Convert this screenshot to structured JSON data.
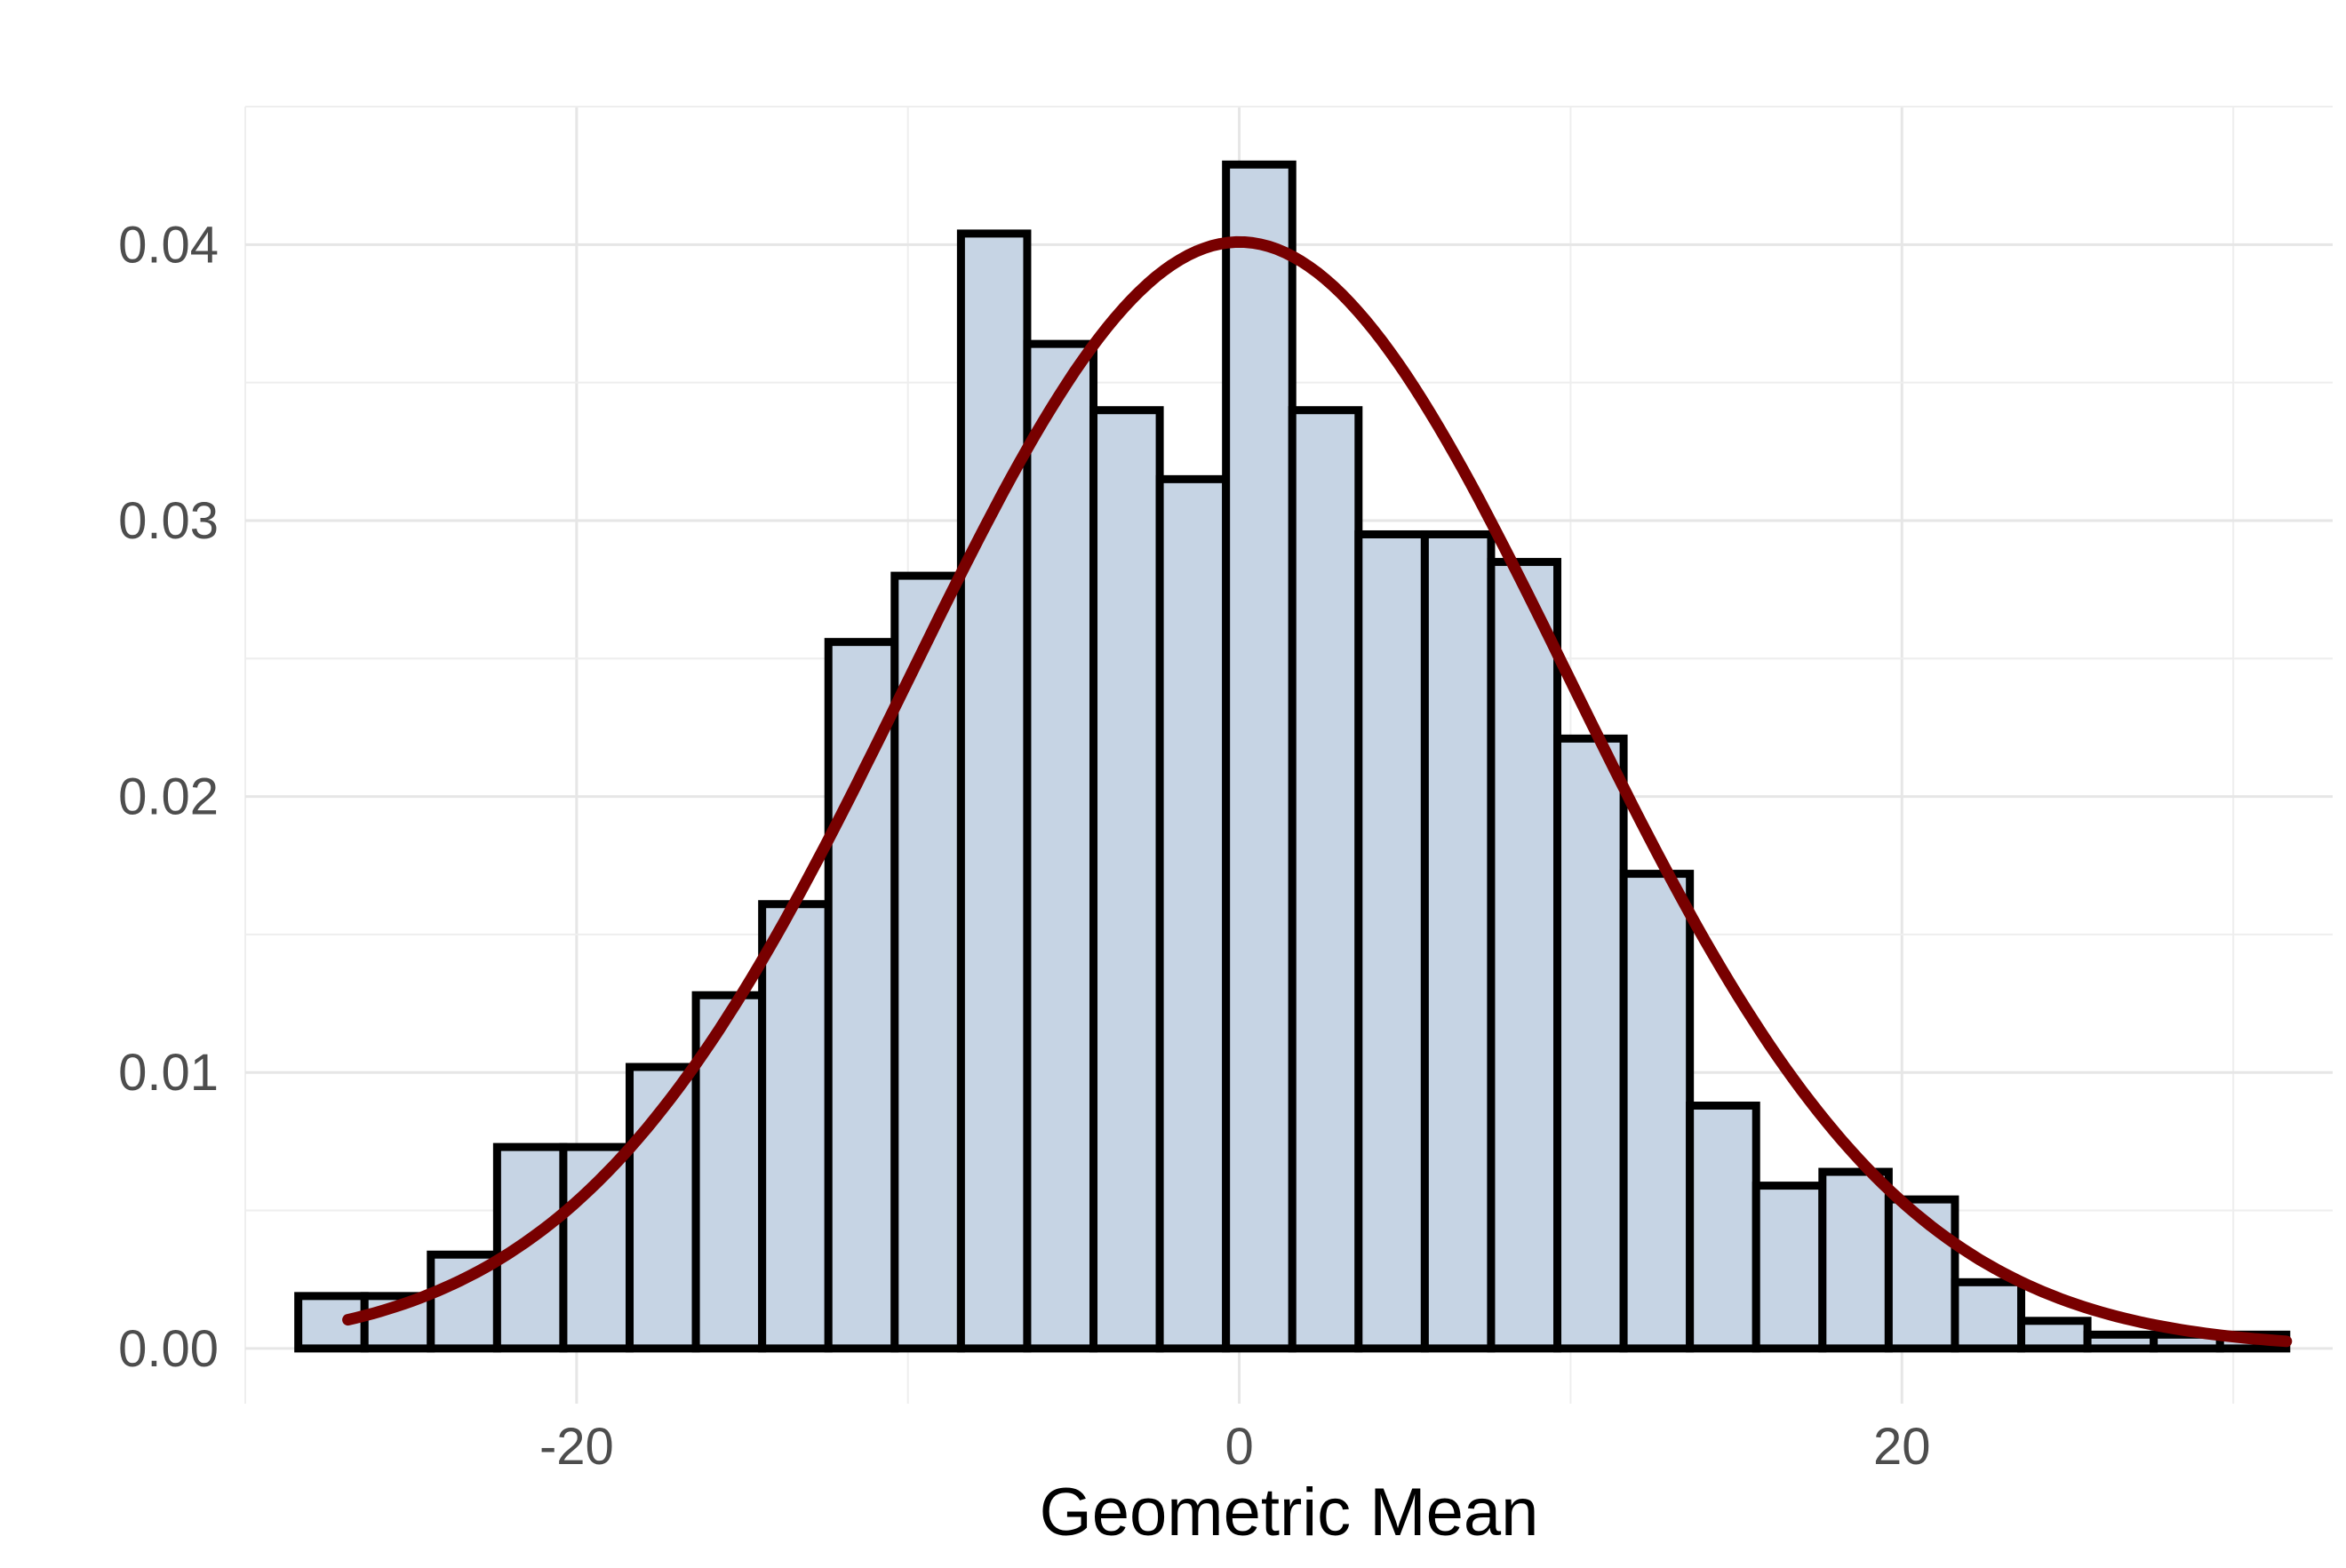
{
  "chart_data": {
    "type": "bar",
    "subtype": "histogram_with_density_curve",
    "title": "",
    "xlabel": "Geometric Mean",
    "ylabel": "",
    "xlim": [
      -30.0,
      33.0
    ],
    "ylim": [
      -0.002,
      0.045
    ],
    "x_ticks": [
      -20,
      0,
      20
    ],
    "x_tick_labels": [
      "-20",
      "0",
      "20"
    ],
    "y_ticks": [
      0.0,
      0.01,
      0.02,
      0.03,
      0.04
    ],
    "y_tick_labels": [
      "0.00",
      "0.01",
      "0.02",
      "0.03",
      "0.04"
    ],
    "grid": true,
    "legend": "none",
    "bin_width": 2.0,
    "bins": [
      {
        "x": -27.4,
        "value": 0.0019
      },
      {
        "x": -25.4,
        "value": 0.0019
      },
      {
        "x": -23.4,
        "value": 0.0034
      },
      {
        "x": -21.4,
        "value": 0.0073
      },
      {
        "x": -19.4,
        "value": 0.0073
      },
      {
        "x": -17.4,
        "value": 0.0102
      },
      {
        "x": -15.4,
        "value": 0.0128
      },
      {
        "x": -13.4,
        "value": 0.0161
      },
      {
        "x": -11.4,
        "value": 0.0256
      },
      {
        "x": -9.4,
        "value": 0.028
      },
      {
        "x": -7.4,
        "value": 0.0404
      },
      {
        "x": -5.4,
        "value": 0.0364
      },
      {
        "x": -3.4,
        "value": 0.034
      },
      {
        "x": -1.4,
        "value": 0.0315
      },
      {
        "x": 0.6,
        "value": 0.0429
      },
      {
        "x": 2.6,
        "value": 0.034
      },
      {
        "x": 4.6,
        "value": 0.0295
      },
      {
        "x": 6.6,
        "value": 0.0295
      },
      {
        "x": 8.6,
        "value": 0.0285
      },
      {
        "x": 10.6,
        "value": 0.0221
      },
      {
        "x": 12.6,
        "value": 0.0172
      },
      {
        "x": 14.6,
        "value": 0.0088
      },
      {
        "x": 16.6,
        "value": 0.0059
      },
      {
        "x": 18.6,
        "value": 0.0064
      },
      {
        "x": 20.6,
        "value": 0.0054
      },
      {
        "x": 22.6,
        "value": 0.0024
      },
      {
        "x": 24.6,
        "value": 0.001
      },
      {
        "x": 26.6,
        "value": 0.0005
      },
      {
        "x": 28.6,
        "value": 0.0005
      },
      {
        "x": 30.6,
        "value": 0.0005
      }
    ],
    "density_curve": {
      "distribution": "normal",
      "mean": 0,
      "sd": 9.95,
      "x_range": [
        -26.9,
        31.6
      ]
    },
    "colors": {
      "bar_fill": "#c6d4e4",
      "bar_stroke": "#000000",
      "curve": "#780000",
      "background": "#ffffff"
    }
  }
}
